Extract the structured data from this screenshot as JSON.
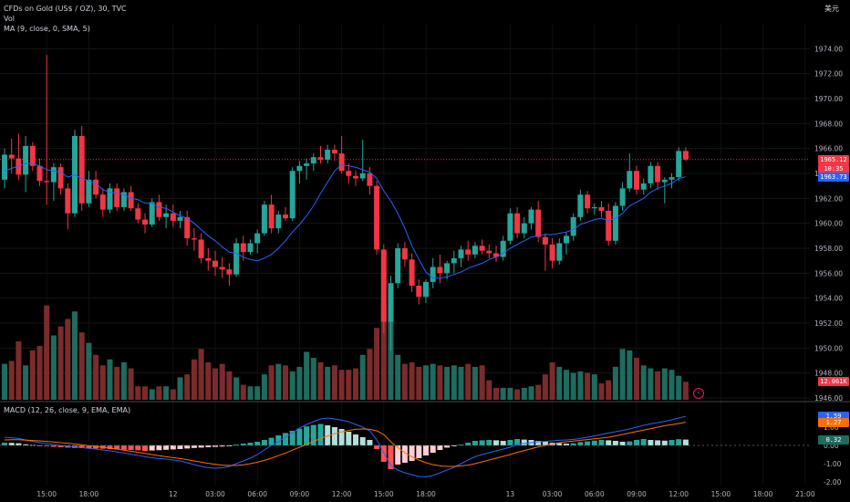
{
  "header": {
    "symbol": "CFDs on Gold (US$ / OZ), 30, TVC",
    "vol": "Vol",
    "ma": "MA (9, close, 0, SMA, 5)",
    "currency": "美元"
  },
  "macd_legend": "MACD (12, 26, close, 9, EMA, EMA)",
  "price_badges": [
    {
      "text": "1965.12",
      "color": "#f23645",
      "price": 1965.12
    },
    {
      "text": "10:35",
      "color": "#f23645",
      "price": 1964.4
    },
    {
      "text": "1963.73",
      "color": "#2962ff",
      "price": 1963.73
    },
    {
      "text": "12.061K",
      "color": "#f23645",
      "price": 1947.3
    }
  ],
  "macd_badges": [
    {
      "text": "1.59",
      "color": "#2962ff",
      "value": 1.59
    },
    {
      "text": "1.27",
      "color": "#ff6d00",
      "value": 1.27
    },
    {
      "text": "0.32",
      "color": "#1e6b5f",
      "value": 0.32
    }
  ],
  "colors": {
    "up": "#26a69a",
    "down": "#f23645",
    "ma": "#2962ff",
    "macd": "#2962ff",
    "signal": "#ff6d00"
  },
  "chart_data": [
    {
      "type": "candlestick",
      "ylim": [
        1946,
        1976
      ],
      "yticks": [
        "1946.00",
        "1948.00",
        "1950.00",
        "1952.00",
        "1954.00",
        "1956.00",
        "1958.00",
        "1960.00",
        "1962.00",
        "1964.00",
        "1966.00",
        "1968.00",
        "1970.00",
        "1972.00",
        "1974.00"
      ],
      "xticks": [
        "15:00",
        "18:00",
        "12",
        "03:00",
        "06:00",
        "09:00",
        "12:00",
        "15:00",
        "18:00",
        "13",
        "03:00",
        "06:00",
        "09:00",
        "12:00",
        "15:00",
        "18:00",
        "21:00"
      ],
      "ohlc": [
        [
          1963.5,
          1966.0,
          1962.8,
          1965.5
        ],
        [
          1965.5,
          1966.8,
          1964.0,
          1965.2
        ],
        [
          1965.2,
          1967.2,
          1963.5,
          1963.9
        ],
        [
          1963.9,
          1967.0,
          1962.5,
          1966.2
        ],
        [
          1966.2,
          1966.5,
          1964.2,
          1964.6
        ],
        [
          1964.6,
          1965.2,
          1963.0,
          1963.4
        ],
        [
          1963.4,
          1973.5,
          1961.5,
          1963.3
        ],
        [
          1963.3,
          1964.8,
          1961.8,
          1964.5
        ],
        [
          1964.5,
          1964.8,
          1962.3,
          1962.8
        ],
        [
          1962.8,
          1963.2,
          1959.5,
          1960.8
        ],
        [
          1960.8,
          1967.5,
          1960.5,
          1967.0
        ],
        [
          1967.0,
          1967.8,
          1961.0,
          1961.6
        ],
        [
          1961.6,
          1964.2,
          1961.3,
          1963.5
        ],
        [
          1963.5,
          1964.2,
          1962.0,
          1962.3
        ],
        [
          1962.3,
          1962.8,
          1960.5,
          1961.1
        ],
        [
          1961.1,
          1963.2,
          1960.8,
          1962.8
        ],
        [
          1962.8,
          1963.2,
          1961.0,
          1961.3
        ],
        [
          1961.3,
          1962.8,
          1961.0,
          1962.5
        ],
        [
          1962.5,
          1963.0,
          1961.0,
          1961.2
        ],
        [
          1961.2,
          1961.6,
          1960.0,
          1960.3
        ],
        [
          1960.3,
          1960.8,
          1959.2,
          1959.9
        ],
        [
          1959.9,
          1962.0,
          1959.7,
          1961.7
        ],
        [
          1961.7,
          1962.3,
          1960.2,
          1960.5
        ],
        [
          1960.5,
          1961.5,
          1959.6,
          1960.8
        ],
        [
          1960.8,
          1961.5,
          1959.7,
          1960.2
        ],
        [
          1960.2,
          1961.0,
          1959.6,
          1960.5
        ],
        [
          1960.5,
          1961.0,
          1958.2,
          1958.8
        ],
        [
          1958.8,
          1959.6,
          1957.8,
          1958.7
        ],
        [
          1958.7,
          1959.2,
          1956.8,
          1957.2
        ],
        [
          1957.2,
          1958.0,
          1956.2,
          1957.0
        ],
        [
          1957.0,
          1957.8,
          1955.8,
          1956.5
        ],
        [
          1956.5,
          1957.3,
          1955.6,
          1956.3
        ],
        [
          1956.3,
          1956.8,
          1955.0,
          1955.9
        ],
        [
          1955.9,
          1958.8,
          1955.7,
          1958.4
        ],
        [
          1958.4,
          1959.0,
          1957.0,
          1957.7
        ],
        [
          1957.7,
          1958.7,
          1957.5,
          1958.4
        ],
        [
          1958.4,
          1959.5,
          1957.6,
          1959.2
        ],
        [
          1959.2,
          1961.8,
          1959.0,
          1961.5
        ],
        [
          1961.5,
          1962.3,
          1959.2,
          1959.6
        ],
        [
          1959.6,
          1961.0,
          1959.2,
          1960.7
        ],
        [
          1960.7,
          1961.3,
          1960.2,
          1960.4
        ],
        [
          1960.4,
          1964.5,
          1960.2,
          1964.2
        ],
        [
          1964.2,
          1965.0,
          1963.2,
          1964.6
        ],
        [
          1964.6,
          1965.2,
          1963.5,
          1964.8
        ],
        [
          1964.8,
          1965.6,
          1964.2,
          1965.3
        ],
        [
          1965.3,
          1966.2,
          1964.8,
          1965.1
        ],
        [
          1965.1,
          1966.3,
          1964.8,
          1965.9
        ],
        [
          1965.9,
          1966.3,
          1965.0,
          1965.6
        ],
        [
          1965.6,
          1967.0,
          1964.0,
          1964.2
        ],
        [
          1964.2,
          1964.8,
          1963.2,
          1963.8
        ],
        [
          1963.8,
          1964.2,
          1963.0,
          1963.6
        ],
        [
          1963.6,
          1966.7,
          1963.4,
          1964.0
        ],
        [
          1964.0,
          1964.5,
          1962.3,
          1963.0
        ],
        [
          1963.0,
          1963.4,
          1957.5,
          1957.9
        ],
        [
          1957.9,
          1958.3,
          1951.2,
          1952.1
        ],
        [
          1952.1,
          1955.8,
          1949.8,
          1955.2
        ],
        [
          1955.2,
          1958.4,
          1954.8,
          1958.0
        ],
        [
          1958.0,
          1958.5,
          1956.5,
          1957.1
        ],
        [
          1957.1,
          1957.6,
          1954.5,
          1955.0
        ],
        [
          1955.0,
          1955.5,
          1953.5,
          1954.1
        ],
        [
          1954.1,
          1955.5,
          1953.6,
          1955.3
        ],
        [
          1955.3,
          1957.2,
          1954.8,
          1956.5
        ],
        [
          1956.5,
          1957.5,
          1955.2,
          1956.0
        ],
        [
          1956.0,
          1957.0,
          1955.5,
          1956.8
        ],
        [
          1956.8,
          1957.8,
          1956.0,
          1957.2
        ],
        [
          1957.2,
          1958.2,
          1956.5,
          1957.9
        ],
        [
          1957.9,
          1958.6,
          1957.0,
          1957.5
        ],
        [
          1957.5,
          1958.5,
          1957.2,
          1958.2
        ],
        [
          1958.2,
          1958.7,
          1957.5,
          1957.8
        ],
        [
          1957.8,
          1958.3,
          1957.2,
          1957.6
        ],
        [
          1957.6,
          1958.2,
          1956.9,
          1957.3
        ],
        [
          1957.3,
          1959.0,
          1957.0,
          1958.6
        ],
        [
          1958.6,
          1961.2,
          1958.3,
          1960.8
        ],
        [
          1960.8,
          1961.3,
          1958.8,
          1959.2
        ],
        [
          1959.2,
          1960.5,
          1958.8,
          1960.0
        ],
        [
          1960.0,
          1961.3,
          1959.5,
          1961.1
        ],
        [
          1961.1,
          1961.8,
          1958.5,
          1958.9
        ],
        [
          1958.9,
          1959.2,
          1956.2,
          1958.3
        ],
        [
          1958.3,
          1958.8,
          1956.4,
          1957.0
        ],
        [
          1957.0,
          1958.8,
          1956.7,
          1958.4
        ],
        [
          1958.4,
          1959.3,
          1957.5,
          1959.0
        ],
        [
          1959.0,
          1960.8,
          1958.6,
          1960.5
        ],
        [
          1960.5,
          1962.7,
          1960.2,
          1962.3
        ],
        [
          1962.3,
          1962.6,
          1960.8,
          1961.2
        ],
        [
          1961.2,
          1961.6,
          1960.7,
          1961.3
        ],
        [
          1961.3,
          1961.8,
          1960.5,
          1961.0
        ],
        [
          1961.0,
          1961.6,
          1958.2,
          1958.6
        ],
        [
          1958.6,
          1961.7,
          1958.3,
          1961.4
        ],
        [
          1961.4,
          1963.3,
          1961.0,
          1962.8
        ],
        [
          1962.8,
          1965.6,
          1962.5,
          1964.2
        ],
        [
          1964.2,
          1964.6,
          1962.3,
          1962.7
        ],
        [
          1962.7,
          1963.6,
          1962.3,
          1963.2
        ],
        [
          1963.2,
          1964.9,
          1962.8,
          1964.6
        ],
        [
          1964.6,
          1964.9,
          1962.7,
          1963.3
        ],
        [
          1963.3,
          1963.7,
          1961.6,
          1963.5
        ],
        [
          1963.5,
          1964.0,
          1962.8,
          1963.7
        ],
        [
          1963.7,
          1966.1,
          1963.4,
          1965.8
        ],
        [
          1965.8,
          1966.1,
          1965.0,
          1965.12
        ]
      ],
      "volume": [
        4.8,
        5.2,
        7.8,
        4.6,
        6.6,
        7.2,
        12.6,
        8.6,
        9.8,
        10.8,
        11.8,
        9.0,
        7.6,
        6.0,
        4.6,
        5.4,
        4.4,
        5.0,
        4.2,
        1.8,
        1.8,
        1.4,
        1.8,
        1.8,
        1.4,
        3.0,
        3.4,
        5.4,
        6.8,
        5.0,
        4.2,
        4.8,
        3.8,
        3.0,
        2.0,
        1.8,
        1.8,
        3.4,
        4.6,
        4.8,
        4.6,
        3.8,
        4.4,
        6.4,
        5.6,
        5.0,
        4.4,
        4.6,
        4.0,
        4.0,
        4.2,
        6.0,
        6.8,
        9.6,
        12.6,
        10.8,
        6.0,
        4.8,
        5.0,
        4.4,
        4.6,
        4.8,
        4.6,
        4.4,
        4.6,
        4.4,
        4.8,
        4.4,
        4.6,
        2.6,
        1.6,
        1.6,
        1.6,
        1.4,
        1.6,
        1.8,
        2.0,
        3.4,
        5.0,
        4.4,
        4.0,
        3.6,
        3.8,
        3.6,
        3.4,
        2.2,
        2.6,
        4.4,
        6.8,
        6.6,
        5.6,
        4.6,
        4.2,
        3.8,
        4.2,
        4.0,
        3.2,
        2.4
      ],
      "ma": [
        1964.2,
        1964.4,
        1964.6,
        1964.8,
        1964.8,
        1964.6,
        1964.3,
        1964.2,
        1964.1,
        1963.7,
        1963.9,
        1963.6,
        1963.4,
        1963.2,
        1962.7,
        1962.5,
        1962.4,
        1962.3,
        1962.0,
        1961.9,
        1961.6,
        1961.6,
        1961.3,
        1961.2,
        1960.9,
        1960.6,
        1960.4,
        1960.0,
        1959.5,
        1959.0,
        1958.6,
        1958.1,
        1957.7,
        1957.6,
        1957.3,
        1957.1,
        1957.0,
        1957.2,
        1957.5,
        1958.0,
        1958.6,
        1959.3,
        1959.9,
        1960.6,
        1961.4,
        1962.4,
        1963.3,
        1964.2,
        1964.7,
        1964.6,
        1964.5,
        1964.3,
        1964.1,
        1963.6,
        1962.6,
        1961.8,
        1960.8,
        1959.6,
        1958.2,
        1957.1,
        1956.1,
        1955.6,
        1955.6,
        1955.7,
        1955.9,
        1956.1,
        1956.4,
        1956.6,
        1956.8,
        1957.1,
        1957.3,
        1957.6,
        1958.0,
        1958.3,
        1958.6,
        1958.9,
        1959.0,
        1959.1,
        1959.1,
        1959.2,
        1959.3,
        1959.5,
        1959.9,
        1960.1,
        1960.3,
        1960.4,
        1960.2,
        1960.4,
        1960.8,
        1961.4,
        1961.7,
        1962.0,
        1962.5,
        1962.8,
        1963.0,
        1963.2,
        1963.6,
        1963.73
      ],
      "macd": {
        "ylim": [
          -2.2,
          2.0
        ],
        "yticks": [
          "-2.00",
          "-1.00",
          "0.00",
          "1.00"
        ],
        "hist": [
          0.15,
          0.14,
          0.12,
          0.06,
          0.03,
          -0.01,
          -0.05,
          -0.08,
          -0.1,
          -0.12,
          -0.14,
          -0.15,
          -0.16,
          -0.17,
          -0.18,
          -0.2,
          -0.22,
          -0.24,
          -0.25,
          -0.27,
          -0.3,
          -0.28,
          -0.26,
          -0.24,
          -0.22,
          -0.2,
          -0.17,
          -0.14,
          -0.12,
          -0.1,
          -0.08,
          -0.06,
          -0.04,
          0.05,
          0.1,
          0.15,
          0.2,
          0.3,
          0.42,
          0.55,
          0.68,
          0.8,
          0.92,
          1.04,
          1.12,
          1.18,
          1.1,
          1.0,
          0.9,
          0.75,
          0.6,
          0.45,
          0.3,
          -0.2,
          -0.9,
          -1.3,
          -1.05,
          -0.95,
          -0.85,
          -0.7,
          -0.55,
          -0.4,
          -0.25,
          -0.12,
          -0.05,
          0.05,
          0.15,
          0.25,
          0.28,
          0.3,
          0.28,
          0.25,
          0.3,
          0.35,
          0.32,
          0.3,
          0.25,
          0.2,
          0.15,
          0.12,
          0.1,
          0.12,
          0.18,
          0.22,
          0.26,
          0.3,
          0.28,
          0.25,
          0.2,
          0.22,
          0.3,
          0.35,
          0.3,
          0.28,
          0.26,
          0.3,
          0.34,
          0.32
        ],
        "macd": [
          0.45,
          0.42,
          0.38,
          0.3,
          0.22,
          0.15,
          0.1,
          0.05,
          0.0,
          -0.05,
          -0.08,
          -0.12,
          -0.16,
          -0.2,
          -0.25,
          -0.3,
          -0.36,
          -0.42,
          -0.48,
          -0.55,
          -0.62,
          -0.68,
          -0.72,
          -0.75,
          -0.8,
          -0.85,
          -0.95,
          -1.05,
          -1.15,
          -1.22,
          -1.25,
          -1.22,
          -1.15,
          -1.0,
          -0.85,
          -0.7,
          -0.5,
          -0.25,
          0.0,
          0.2,
          0.45,
          0.7,
          0.95,
          1.15,
          1.3,
          1.45,
          1.5,
          1.45,
          1.38,
          1.3,
          1.15,
          1.0,
          0.8,
          0.3,
          -0.4,
          -1.1,
          -1.35,
          -1.5,
          -1.6,
          -1.7,
          -1.72,
          -1.65,
          -1.5,
          -1.35,
          -1.2,
          -1.0,
          -0.8,
          -0.62,
          -0.5,
          -0.4,
          -0.3,
          -0.2,
          -0.1,
          0.05,
          0.1,
          0.15,
          0.2,
          0.22,
          0.25,
          0.28,
          0.3,
          0.33,
          0.38,
          0.45,
          0.52,
          0.6,
          0.68,
          0.75,
          0.82,
          0.9,
          1.0,
          1.1,
          1.18,
          1.25,
          1.32,
          1.4,
          1.5,
          1.59
        ],
        "signal": [
          0.3,
          0.31,
          0.31,
          0.29,
          0.27,
          0.25,
          0.22,
          0.19,
          0.15,
          0.12,
          0.08,
          0.04,
          -0.01,
          -0.05,
          -0.1,
          -0.15,
          -0.2,
          -0.26,
          -0.32,
          -0.38,
          -0.44,
          -0.5,
          -0.56,
          -0.62,
          -0.67,
          -0.72,
          -0.78,
          -0.85,
          -0.91,
          -0.98,
          -1.04,
          -1.08,
          -1.1,
          -1.1,
          -1.06,
          -1.0,
          -0.92,
          -0.82,
          -0.7,
          -0.56,
          -0.42,
          -0.26,
          -0.1,
          0.05,
          0.22,
          0.38,
          0.52,
          0.64,
          0.74,
          0.82,
          0.88,
          0.9,
          0.88,
          0.8,
          0.6,
          0.2,
          -0.12,
          -0.4,
          -0.62,
          -0.8,
          -0.95,
          -1.05,
          -1.12,
          -1.15,
          -1.15,
          -1.12,
          -1.08,
          -1.0,
          -0.9,
          -0.8,
          -0.7,
          -0.6,
          -0.5,
          -0.38,
          -0.28,
          -0.18,
          -0.08,
          0.0,
          0.08,
          0.15,
          0.2,
          0.24,
          0.28,
          0.32,
          0.36,
          0.4,
          0.45,
          0.52,
          0.6,
          0.68,
          0.76,
          0.84,
          0.92,
          1.0,
          1.08,
          1.14,
          1.2,
          1.27
        ]
      }
    }
  ]
}
